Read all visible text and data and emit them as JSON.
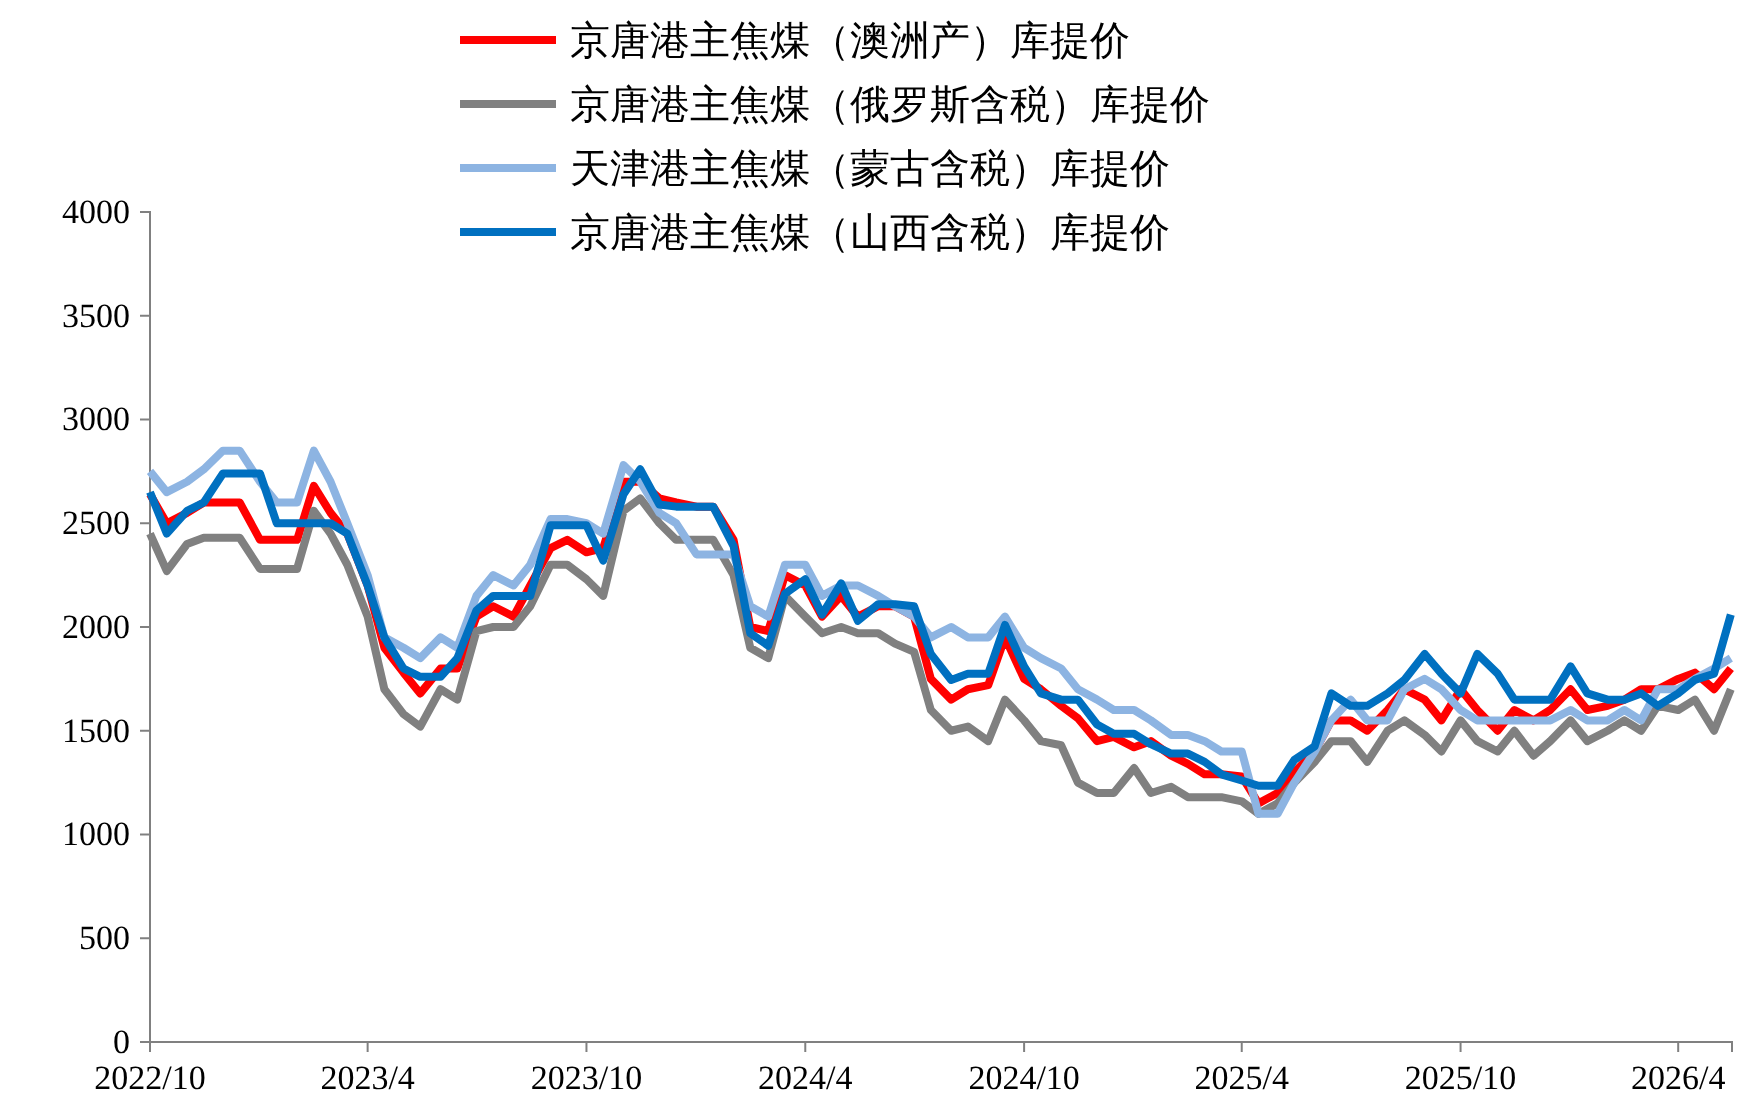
{
  "chart_data": {
    "type": "line",
    "legend": "top",
    "grid": false,
    "line_style": "solid",
    "marker": "none",
    "xlim": [
      "2022-10-01",
      "2026-05-16"
    ],
    "xticks": [
      {
        "value": "2022-10-01",
        "label": "2022/10"
      },
      {
        "value": "2023-04-01",
        "label": "2023/4"
      },
      {
        "value": "2023-10-01",
        "label": "2023/10"
      },
      {
        "value": "2024-04-01",
        "label": "2024/4"
      },
      {
        "value": "2024-10-01",
        "label": "2024/10"
      },
      {
        "value": "2025-04-01",
        "label": "2025/4"
      },
      {
        "value": "2025-10-01",
        "label": "2025/10"
      },
      {
        "value": "2026-04-01",
        "label": "2026/4"
      }
    ],
    "ylim": [
      0,
      4000
    ],
    "yticks": [
      0,
      500,
      1000,
      1500,
      2000,
      2500,
      3000,
      3500,
      4000
    ],
    "x": [
      "2022-10-01",
      "2022-10-15",
      "2022-11-01",
      "2022-11-15",
      "2022-12-01",
      "2022-12-15",
      "2023-01-01",
      "2023-01-15",
      "2023-02-01",
      "2023-02-15",
      "2023-03-01",
      "2023-03-15",
      "2023-04-01",
      "2023-04-15",
      "2023-05-01",
      "2023-05-15",
      "2023-06-01",
      "2023-06-15",
      "2023-07-01",
      "2023-07-15",
      "2023-08-01",
      "2023-08-15",
      "2023-09-01",
      "2023-09-15",
      "2023-10-01",
      "2023-10-15",
      "2023-11-01",
      "2023-11-15",
      "2023-12-01",
      "2023-12-15",
      "2024-01-01",
      "2024-01-15",
      "2024-02-01",
      "2024-02-15",
      "2024-03-01",
      "2024-03-15",
      "2024-04-01",
      "2024-04-15",
      "2024-05-01",
      "2024-05-15",
      "2024-06-01",
      "2024-06-15",
      "2024-07-01",
      "2024-07-15",
      "2024-08-01",
      "2024-08-15",
      "2024-09-01",
      "2024-09-15",
      "2024-10-01",
      "2024-10-15",
      "2024-11-01",
      "2024-11-15",
      "2024-12-01",
      "2024-12-15",
      "2025-01-01",
      "2025-01-15",
      "2025-02-01",
      "2025-02-15",
      "2025-03-01",
      "2025-03-15",
      "2025-04-01",
      "2025-04-15",
      "2025-05-01",
      "2025-05-15",
      "2025-06-01",
      "2025-06-15",
      "2025-07-01",
      "2025-07-15",
      "2025-08-01",
      "2025-08-15",
      "2025-09-01",
      "2025-09-15",
      "2025-10-01",
      "2025-10-15",
      "2025-11-01",
      "2025-11-15",
      "2025-12-01",
      "2025-12-15",
      "2026-01-01",
      "2026-01-15",
      "2026-02-01",
      "2026-02-15",
      "2026-03-01",
      "2026-03-15",
      "2026-04-01",
      "2026-04-15",
      "2026-05-01",
      "2026-05-15"
    ],
    "series": [
      {
        "name": "京唐港主焦煤（澳洲产）库提价",
        "color": "#ff0000",
        "values": [
          2640,
          2500,
          2550,
          2600,
          2600,
          2600,
          2420,
          2420,
          2420,
          2680,
          2550,
          2450,
          2200,
          1900,
          1780,
          1680,
          1800,
          1800,
          2050,
          2100,
          2050,
          2200,
          2380,
          2420,
          2360,
          2380,
          2700,
          2700,
          2620,
          2600,
          2580,
          2580,
          2420,
          2000,
          1980,
          2250,
          2200,
          2050,
          2150,
          2050,
          2100,
          2100,
          2050,
          1750,
          1650,
          1700,
          1720,
          1950,
          1750,
          1700,
          1620,
          1560,
          1450,
          1470,
          1420,
          1450,
          1380,
          1340,
          1290,
          1290,
          1280,
          1150,
          1200,
          1300,
          1400,
          1550,
          1550,
          1500,
          1600,
          1700,
          1650,
          1550,
          1700,
          1600,
          1500,
          1600,
          1550,
          1600,
          1700,
          1600,
          1620,
          1650,
          1700,
          1700,
          1750,
          1780,
          1700,
          1800
        ]
      },
      {
        "name": "京唐港主焦煤（俄罗斯含税）库提价",
        "color": "#808080",
        "values": [
          2450,
          2270,
          2400,
          2430,
          2430,
          2430,
          2280,
          2280,
          2280,
          2560,
          2450,
          2300,
          2050,
          1700,
          1580,
          1520,
          1700,
          1650,
          1980,
          2000,
          2000,
          2100,
          2300,
          2300,
          2230,
          2150,
          2560,
          2620,
          2500,
          2420,
          2420,
          2420,
          2250,
          1900,
          1850,
          2150,
          2050,
          1970,
          2000,
          1970,
          1970,
          1920,
          1880,
          1600,
          1500,
          1520,
          1450,
          1650,
          1550,
          1450,
          1430,
          1250,
          1200,
          1200,
          1320,
          1200,
          1230,
          1180,
          1180,
          1180,
          1160,
          1100,
          1150,
          1250,
          1350,
          1450,
          1450,
          1350,
          1500,
          1550,
          1480,
          1400,
          1550,
          1450,
          1400,
          1500,
          1380,
          1450,
          1550,
          1450,
          1500,
          1550,
          1500,
          1620,
          1600,
          1650,
          1500,
          1700
        ]
      },
      {
        "name": "天津港主焦煤（蒙古含税）库提价",
        "color": "#8db4e2",
        "values": [
          2750,
          2650,
          2700,
          2760,
          2850,
          2850,
          2700,
          2600,
          2600,
          2850,
          2700,
          2500,
          2250,
          1950,
          1900,
          1850,
          1950,
          1900,
          2150,
          2250,
          2200,
          2300,
          2520,
          2520,
          2500,
          2450,
          2780,
          2700,
          2550,
          2500,
          2350,
          2350,
          2350,
          2100,
          2050,
          2300,
          2300,
          2150,
          2200,
          2200,
          2150,
          2100,
          2050,
          1950,
          2000,
          1950,
          1950,
          2050,
          1900,
          1850,
          1800,
          1700,
          1650,
          1600,
          1600,
          1550,
          1480,
          1480,
          1450,
          1400,
          1400,
          1100,
          1100,
          1250,
          1400,
          1550,
          1650,
          1550,
          1550,
          1700,
          1750,
          1700,
          1600,
          1550,
          1550,
          1550,
          1550,
          1550,
          1600,
          1550,
          1550,
          1600,
          1550,
          1700,
          1700,
          1750,
          1800,
          1850
        ]
      },
      {
        "name": "京唐港主焦煤（山西含税）库提价",
        "color": "#0070c0",
        "values": [
          2650,
          2450,
          2560,
          2600,
          2740,
          2740,
          2740,
          2500,
          2500,
          2500,
          2500,
          2450,
          2200,
          1950,
          1800,
          1760,
          1760,
          1850,
          2080,
          2150,
          2150,
          2150,
          2490,
          2490,
          2490,
          2320,
          2640,
          2760,
          2590,
          2580,
          2580,
          2580,
          2390,
          1970,
          1910,
          2160,
          2230,
          2060,
          2210,
          2030,
          2110,
          2110,
          2100,
          1870,
          1745,
          1775,
          1775,
          2010,
          1810,
          1680,
          1650,
          1650,
          1530,
          1485,
          1485,
          1435,
          1390,
          1390,
          1350,
          1290,
          1260,
          1235,
          1235,
          1360,
          1425,
          1680,
          1620,
          1620,
          1680,
          1745,
          1870,
          1775,
          1680,
          1870,
          1775,
          1650,
          1650,
          1650,
          1810,
          1680,
          1650,
          1650,
          1680,
          1620,
          1680,
          1745,
          1775,
          2060
        ]
      }
    ]
  }
}
